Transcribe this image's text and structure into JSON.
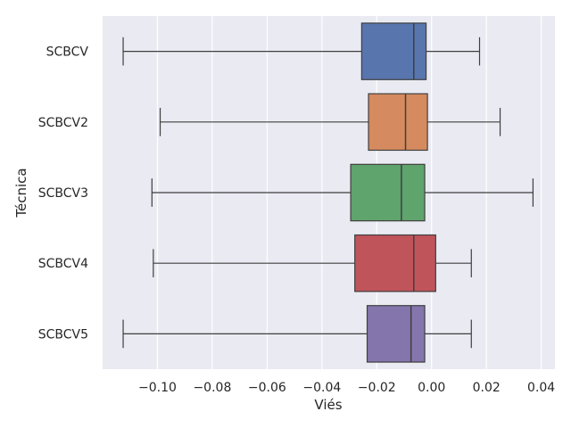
{
  "chart_data": {
    "type": "boxplot",
    "orientation": "horizontal",
    "xlabel": "Viés",
    "ylabel": "Técnica",
    "xlim": [
      -0.12,
      0.045
    ],
    "xticks": [
      -0.1,
      -0.08,
      -0.06,
      -0.04,
      -0.02,
      0.0,
      0.02,
      0.04
    ],
    "xtick_labels": [
      "−0.10",
      "−0.08",
      "−0.06",
      "−0.04",
      "−0.02",
      "0.00",
      "0.02",
      "0.04"
    ],
    "grid": true,
    "background": "#eaeaf2",
    "categories": [
      "SCBCV",
      "SCBCV2",
      "SCBCV3",
      "SCBCV4",
      "SCBCV5"
    ],
    "series": [
      {
        "category": "SCBCV",
        "min": -0.1125,
        "q1": -0.0255,
        "median": -0.0065,
        "q3": -0.002,
        "max": 0.0175,
        "color": "#5875ae"
      },
      {
        "category": "SCBCV2",
        "min": -0.099,
        "q1": -0.023,
        "median": -0.0095,
        "q3": -0.0015,
        "max": 0.025,
        "color": "#d58b5f"
      },
      {
        "category": "SCBCV3",
        "min": -0.102,
        "q1": -0.0295,
        "median": -0.011,
        "q3": -0.0025,
        "max": 0.037,
        "color": "#5fa46d"
      },
      {
        "category": "SCBCV4",
        "min": -0.1015,
        "q1": -0.028,
        "median": -0.0065,
        "q3": 0.0015,
        "max": 0.0145,
        "color": "#c0545b"
      },
      {
        "category": "SCBCV5",
        "min": -0.1125,
        "q1": -0.0235,
        "median": -0.0075,
        "q3": -0.0025,
        "max": 0.0145,
        "color": "#8575ad"
      }
    ]
  }
}
